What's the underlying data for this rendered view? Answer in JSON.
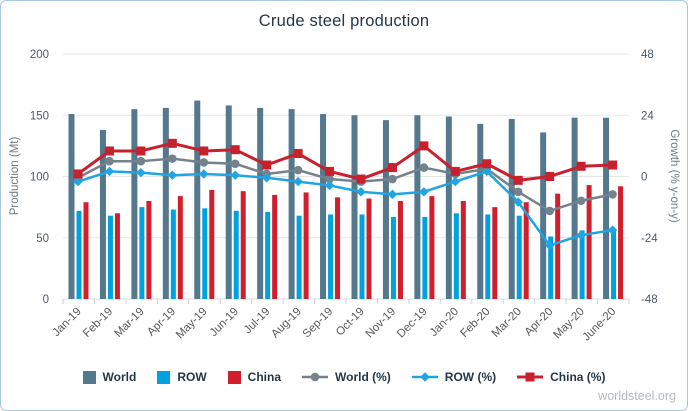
{
  "frame": {
    "watermark": "worldsteel.org"
  },
  "chart_data": {
    "type": "bar+line",
    "title": "Crude steel production",
    "categories": [
      "Jan-19",
      "Feb-19",
      "Mar-19",
      "Apr-19",
      "May-19",
      "Jun-19",
      "Jul-19",
      "Aug-19",
      "Sep-19",
      "Oct-19",
      "Nov-19",
      "Dec-19",
      "Jan-20",
      "Feb-20",
      "Mar-20",
      "Apr-20",
      "May-20",
      "June-20"
    ],
    "left_axis": {
      "title": "Production (Mt)",
      "ticks": [
        200,
        150,
        100,
        50,
        0
      ],
      "range": [
        0,
        200
      ]
    },
    "right_axis": {
      "title": "Growth (% y-on-y)",
      "ticks": [
        48,
        24,
        0,
        -24,
        -48
      ],
      "range": [
        -48,
        48
      ]
    },
    "bar_series": [
      {
        "name": "World",
        "color": "#54788C",
        "axis": "left",
        "values": [
          151,
          138,
          155,
          156,
          162,
          158,
          156,
          155,
          151,
          150,
          146,
          150,
          149,
          143,
          147,
          136,
          148,
          148
        ]
      },
      {
        "name": "ROW",
        "color": "#00A2DE",
        "axis": "left",
        "values": [
          72,
          68,
          75,
          73,
          74,
          72,
          71,
          68,
          69,
          69,
          67,
          67,
          70,
          69,
          68,
          51,
          56,
          57
        ]
      },
      {
        "name": "China",
        "color": "#D0202E",
        "axis": "left",
        "values": [
          79,
          70,
          80,
          84,
          89,
          88,
          85,
          87,
          83,
          82,
          80,
          84,
          80,
          75,
          79,
          86,
          93,
          92
        ]
      }
    ],
    "line_series": [
      {
        "name": "World (%)",
        "color": "#75828D",
        "marker": "circle",
        "width": 2.5,
        "axis": "right",
        "values": [
          -0.5,
          6,
          6,
          7,
          5.5,
          5,
          1,
          2.5,
          -1,
          -2,
          -1,
          3.5,
          1,
          3,
          -6,
          -13.5,
          -9.5,
          -7
        ]
      },
      {
        "name": "ROW (%)",
        "color": "#1FA5E2",
        "marker": "diamond",
        "width": 2.5,
        "axis": "right",
        "values": [
          -2,
          2,
          1.5,
          0.5,
          1,
          0.5,
          -0.5,
          -2,
          -3.5,
          -6,
          -7,
          -6,
          -2,
          2,
          -10,
          -27,
          -23,
          -21
        ]
      },
      {
        "name": "China (%)",
        "color": "#C8202D",
        "marker": "square",
        "width": 3,
        "axis": "right",
        "values": [
          1,
          10,
          10,
          13,
          10,
          10.5,
          4.5,
          9,
          2,
          -1,
          3.5,
          12,
          2,
          5,
          -1.5,
          0,
          4,
          4.5
        ]
      }
    ],
    "legend_position": "bottom",
    "grid": true,
    "colors": {
      "grid": "#E6E6E6",
      "baseline": "#D7DDE3",
      "tick": "#C3D2E2",
      "axis_text": "#4A5A6B",
      "x_text": "#595959",
      "title_text": "#253746",
      "border": "#A9CBE2"
    }
  }
}
